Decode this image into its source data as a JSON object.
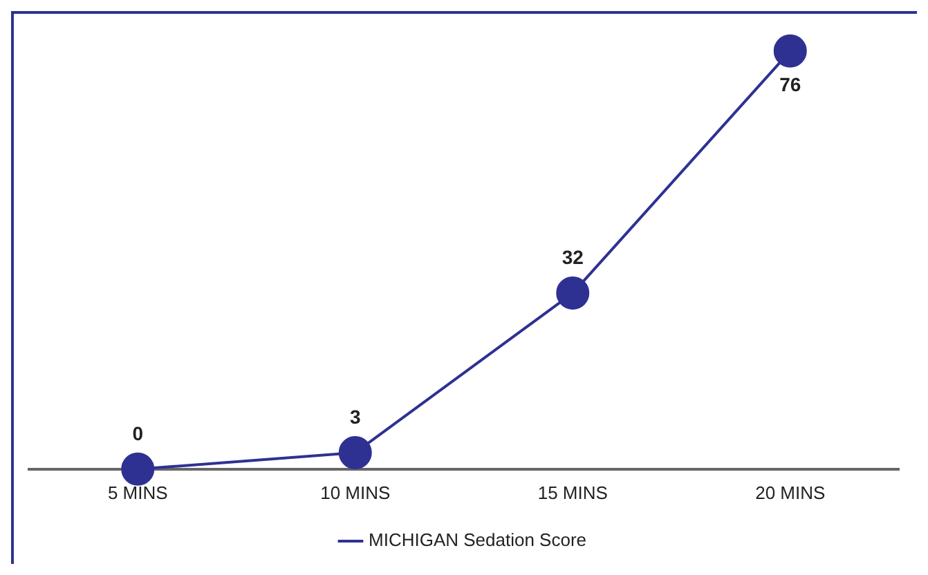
{
  "chart_data": {
    "type": "line",
    "categories": [
      "5 MINS",
      "10 MINS",
      "15 MINS",
      "20 MINS"
    ],
    "series": [
      {
        "name": "MICHIGAN Sedation Score",
        "color": "#2e3192",
        "values": [
          0,
          3,
          32,
          76
        ]
      }
    ],
    "data_labels": true,
    "legend": "bottom",
    "marker": "circle",
    "grid": false
  }
}
